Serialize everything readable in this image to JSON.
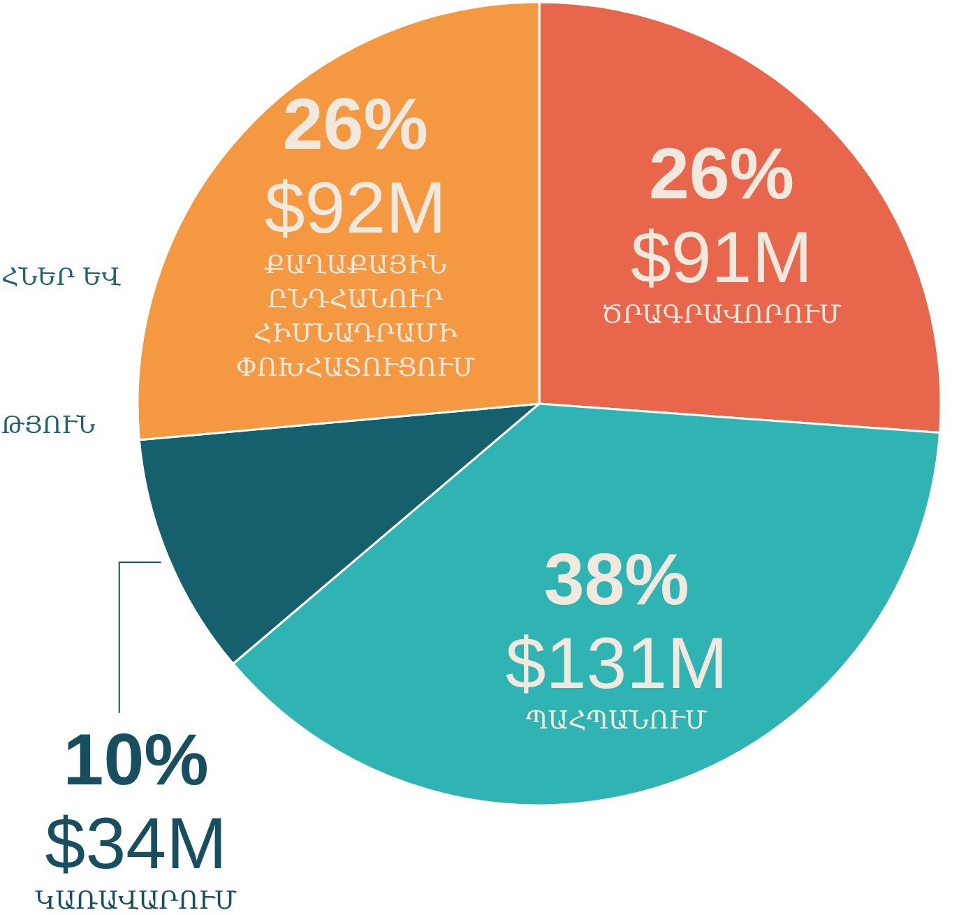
{
  "chart_data": {
    "type": "pie",
    "categories": [
      "ԾՐԱԳՐԱՎՈՐՈՒՄ",
      "ՊԱՀՊԱՆՈՒՄ",
      "ԿԱՌԱՎԱՐՈՒՄ",
      "ՔԱՂԱՔԱՅԻՆ ԸՆԴՀԱՆՈՒՐ ՀԻՄՆԱԴՐԱՄԻ ՓՈԽՀԱՏՈՒՑՈՒՄ"
    ],
    "values": [
      91,
      131,
      34,
      92
    ],
    "value_labels": [
      "$91M",
      "$131M",
      "$34M",
      "$92M"
    ],
    "colors": [
      "#e8674c",
      "#30b3b3",
      "#16606e",
      "#f59842"
    ],
    "annotations": [
      {
        "text": "26%",
        "x": "ԾՐԱԳՐԱՎՈՐՈՒՄ"
      },
      {
        "text": "38%",
        "x": "ՊԱՀՊԱՆՈՒՄ"
      },
      {
        "text": "10%",
        "x": "ԿԱՌԱՎԱՐՈՒՄ"
      },
      {
        "text": "26%",
        "x": "ՔԱՂԱՔԱՅԻՆ ԸՆԴՀԱՆՈՒՐ ՀԻՄՆԱԴՐԱՄԻ ՓՈԽՀԱՏՈՒՑՈՒՄ"
      },
      "ՀՆԵՐ ԵՎ",
      "ԹՅՈՒՆ"
    ]
  }
}
